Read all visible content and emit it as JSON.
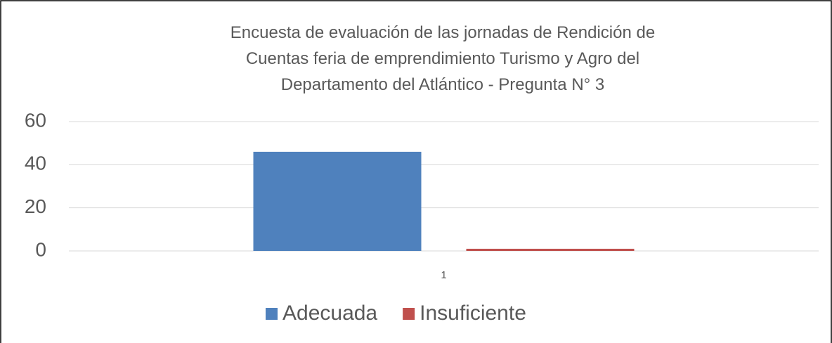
{
  "chart_data": {
    "type": "bar",
    "title": "Encuesta de evaluación de las jornadas de Rendición de\nCuentas feria de emprendimiento Turismo y Agro del\nDepartamento del Atlántico - Pregunta N° 3",
    "categories": [
      "1"
    ],
    "series": [
      {
        "name": "Adecuada",
        "color": "#4f81bd",
        "values": [
          46
        ]
      },
      {
        "name": "Insuficiente",
        "color": "#c0504d",
        "values": [
          1
        ]
      }
    ],
    "ylim": [
      0,
      60
    ],
    "yticks": [
      0,
      20,
      40,
      60
    ],
    "grid": true,
    "legend": "bottom"
  }
}
